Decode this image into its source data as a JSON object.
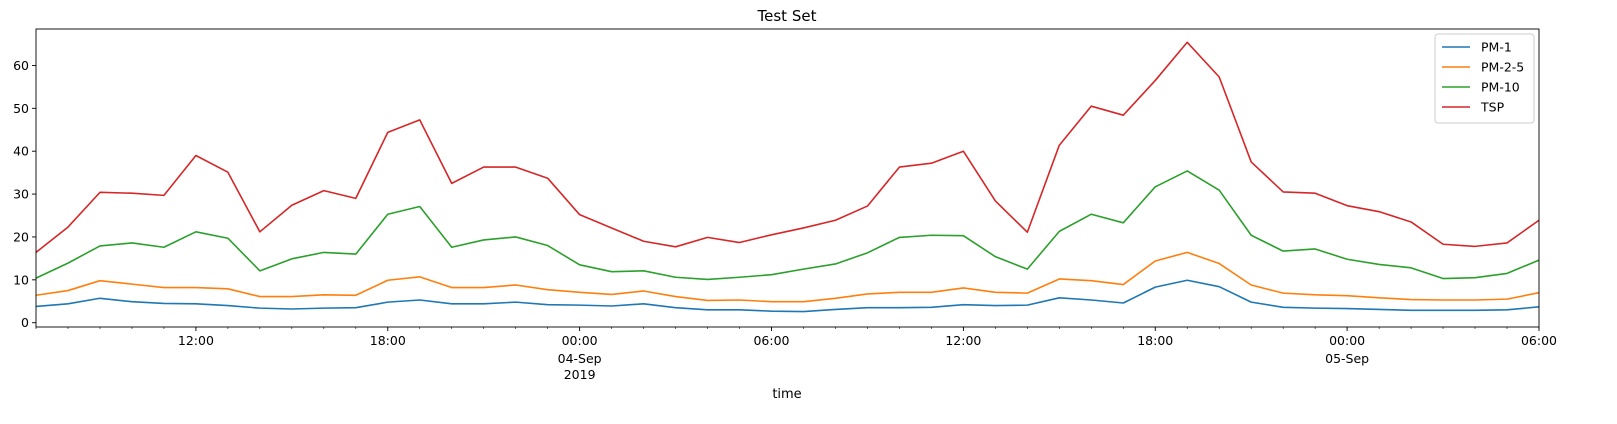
{
  "chart_data": {
    "type": "line",
    "title": "Test Set",
    "xlabel": "time",
    "ylabel": "",
    "x_start": "2019-09-03 07:00",
    "x_step_hours": 1,
    "x_range": [
      "2019-09-03 07:00",
      "2019-09-05 06:00"
    ],
    "ylim": [
      -1,
      68.5
    ],
    "yticks": [
      0,
      10,
      20,
      30,
      40,
      50,
      60
    ],
    "xticks": [
      {
        "time": "2019-09-03 12:00",
        "label": "12:00",
        "sub": ""
      },
      {
        "time": "2019-09-03 18:00",
        "label": "18:00",
        "sub": ""
      },
      {
        "time": "2019-09-04 00:00",
        "label": "00:00",
        "sub": "04-Sep\n2019"
      },
      {
        "time": "2019-09-04 06:00",
        "label": "06:00",
        "sub": ""
      },
      {
        "time": "2019-09-04 12:00",
        "label": "12:00",
        "sub": ""
      },
      {
        "time": "2019-09-04 18:00",
        "label": "18:00",
        "sub": ""
      },
      {
        "time": "2019-09-05 00:00",
        "label": "00:00",
        "sub": "05-Sep"
      },
      {
        "time": "2019-09-05 06:00",
        "label": "06:00",
        "sub": ""
      }
    ],
    "legend_position": "top-right",
    "grid": false,
    "series": [
      {
        "name": "PM-1",
        "color": "#1f77b4",
        "values": [
          3.8,
          4.4,
          5.7,
          4.9,
          4.5,
          4.4,
          4.0,
          3.4,
          3.2,
          3.4,
          3.5,
          4.8,
          5.3,
          4.4,
          4.4,
          4.8,
          4.2,
          4.1,
          3.9,
          4.4,
          3.5,
          3.0,
          3.0,
          2.7,
          2.6,
          3.1,
          3.5,
          3.5,
          3.6,
          4.2,
          4.0,
          4.1,
          5.8,
          5.3,
          4.6,
          8.3,
          9.9,
          8.4,
          4.8,
          3.6,
          3.4,
          3.3,
          3.1,
          2.9,
          2.9,
          2.9,
          3.0,
          3.7
        ]
      },
      {
        "name": "PM-2-5",
        "color": "#ff7f0e",
        "values": [
          6.4,
          7.5,
          9.8,
          9.0,
          8.2,
          8.2,
          7.9,
          6.1,
          6.1,
          6.5,
          6.4,
          9.9,
          10.7,
          8.2,
          8.2,
          8.8,
          7.7,
          7.1,
          6.6,
          7.4,
          6.1,
          5.2,
          5.3,
          4.9,
          4.9,
          5.7,
          6.7,
          7.1,
          7.1,
          8.1,
          7.1,
          6.9,
          10.2,
          9.8,
          8.9,
          14.4,
          16.4,
          13.8,
          8.8,
          6.9,
          6.5,
          6.3,
          5.8,
          5.4,
          5.3,
          5.3,
          5.5,
          7.0
        ]
      },
      {
        "name": "PM-10",
        "color": "#2ca02c",
        "values": [
          10.4,
          13.9,
          17.9,
          18.6,
          17.6,
          21.2,
          19.7,
          12.1,
          14.9,
          16.4,
          16.0,
          25.3,
          27.1,
          17.6,
          19.3,
          20.0,
          18.0,
          13.5,
          11.9,
          12.1,
          10.6,
          10.1,
          10.6,
          11.2,
          12.5,
          13.7,
          16.3,
          19.9,
          20.4,
          20.3,
          15.4,
          12.5,
          21.3,
          25.3,
          23.3,
          31.7,
          35.4,
          30.9,
          20.4,
          16.7,
          17.2,
          14.8,
          13.6,
          12.8,
          10.3,
          10.5,
          11.5,
          14.6
        ]
      },
      {
        "name": "TSP",
        "color": "#d62728",
        "values": [
          16.4,
          22.3,
          30.4,
          30.2,
          29.7,
          39.0,
          35.1,
          21.2,
          27.4,
          30.8,
          29.0,
          44.4,
          47.3,
          32.5,
          36.3,
          36.3,
          33.7,
          25.2,
          22.1,
          19.0,
          17.7,
          19.9,
          18.7,
          20.5,
          22.1,
          23.9,
          27.2,
          36.3,
          37.2,
          40.0,
          28.4,
          21.1,
          41.4,
          50.5,
          48.4,
          56.5,
          65.4,
          57.3,
          37.5,
          30.5,
          30.2,
          27.3,
          25.9,
          23.5,
          18.3,
          17.8,
          18.6,
          23.9
        ]
      }
    ]
  }
}
